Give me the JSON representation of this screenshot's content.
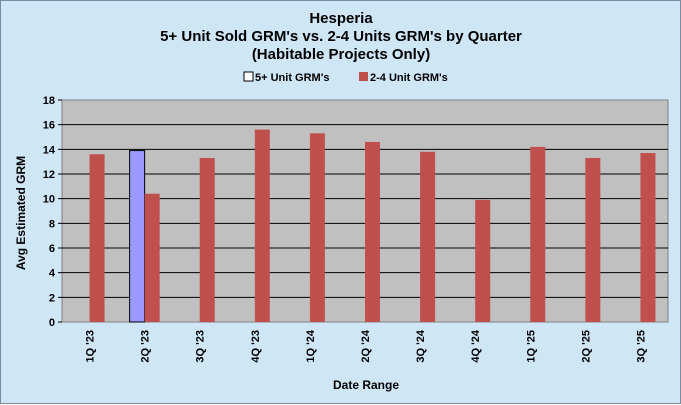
{
  "chart_data": {
    "type": "bar",
    "title_lines": [
      "Hesperia",
      "5+ Unit Sold GRM's vs. 2-4 Units GRM's by Quarter",
      "(Habitable Projects Only)"
    ],
    "xlabel": "Date Range",
    "ylabel": "Avg  Estimated  GRM",
    "categories": [
      "1Q '23",
      "2Q '23",
      "3Q '23",
      "4Q '23",
      "1Q '24",
      "2Q '24",
      "3Q '24",
      "4Q '24",
      "1Q '25",
      "2Q '25",
      "3Q '25"
    ],
    "series": [
      {
        "name": "5+ Unit GRM's",
        "color": "#9999ff",
        "values": [
          null,
          13.9,
          null,
          null,
          null,
          null,
          null,
          null,
          null,
          null,
          null
        ]
      },
      {
        "name": "2-4 Unit GRM's",
        "color": "#c0504d",
        "values": [
          13.6,
          10.4,
          13.3,
          15.6,
          15.3,
          14.6,
          13.8,
          9.9,
          14.2,
          13.3,
          13.7
        ]
      }
    ],
    "ylim": [
      0,
      18
    ],
    "yticks": [
      0,
      2,
      4,
      6,
      8,
      10,
      12,
      14,
      16,
      18
    ],
    "grid": true,
    "legend_position": "top"
  }
}
